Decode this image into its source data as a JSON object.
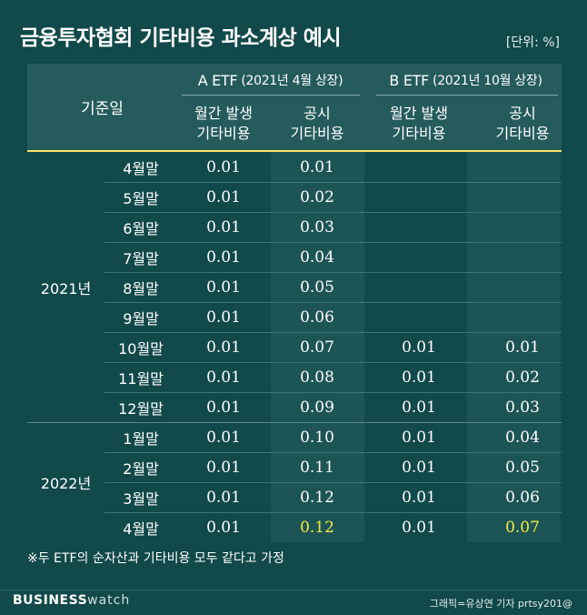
{
  "title": "금융투자협회 기타비용 과소계상 예시",
  "unit": "[단위: %]",
  "chart_data": {
    "type": "table",
    "header": {
      "base_date": "기준일",
      "group_a": {
        "name": "A ETF",
        "note": "(2021년 4월 상장)"
      },
      "group_b": {
        "name": "B ETF",
        "note": "(2021년 10월 상장)"
      },
      "sub_cols": [
        [
          "월간 발생",
          "기타비용"
        ],
        [
          "공시",
          "기타비용"
        ],
        [
          "월간 발생",
          "기타비용"
        ],
        [
          "공시",
          "기타비용"
        ]
      ]
    },
    "years": [
      {
        "label": "2021년",
        "row_count": 9
      },
      {
        "label": "2022년",
        "row_count": 4
      }
    ],
    "rows": [
      {
        "month": "4월말",
        "a_monthly": "0.01",
        "a_disclosed": "0.01",
        "b_monthly": "",
        "b_disclosed": ""
      },
      {
        "month": "5월말",
        "a_monthly": "0.01",
        "a_disclosed": "0.02",
        "b_monthly": "",
        "b_disclosed": ""
      },
      {
        "month": "6월말",
        "a_monthly": "0.01",
        "a_disclosed": "0.03",
        "b_monthly": "",
        "b_disclosed": ""
      },
      {
        "month": "7월말",
        "a_monthly": "0.01",
        "a_disclosed": "0.04",
        "b_monthly": "",
        "b_disclosed": ""
      },
      {
        "month": "8월말",
        "a_monthly": "0.01",
        "a_disclosed": "0.05",
        "b_monthly": "",
        "b_disclosed": ""
      },
      {
        "month": "9월말",
        "a_monthly": "0.01",
        "a_disclosed": "0.06",
        "b_monthly": "",
        "b_disclosed": ""
      },
      {
        "month": "10월말",
        "a_monthly": "0.01",
        "a_disclosed": "0.07",
        "b_monthly": "0.01",
        "b_disclosed": "0.01"
      },
      {
        "month": "11월말",
        "a_monthly": "0.01",
        "a_disclosed": "0.08",
        "b_monthly": "0.01",
        "b_disclosed": "0.02"
      },
      {
        "month": "12월말",
        "a_monthly": "0.01",
        "a_disclosed": "0.09",
        "b_monthly": "0.01",
        "b_disclosed": "0.03"
      },
      {
        "month": "1월말",
        "a_monthly": "0.01",
        "a_disclosed": "0.10",
        "b_monthly": "0.01",
        "b_disclosed": "0.04"
      },
      {
        "month": "2월말",
        "a_monthly": "0.01",
        "a_disclosed": "0.11",
        "b_monthly": "0.01",
        "b_disclosed": "0.05"
      },
      {
        "month": "3월말",
        "a_monthly": "0.01",
        "a_disclosed": "0.12",
        "b_monthly": "0.01",
        "b_disclosed": "0.06"
      },
      {
        "month": "4월말",
        "a_monthly": "0.01",
        "a_disclosed": "0.12",
        "b_monthly": "0.01",
        "b_disclosed": "0.07"
      }
    ],
    "highlight": [
      {
        "row": 12,
        "col": "a_disclosed"
      },
      {
        "row": 12,
        "col": "b_disclosed"
      }
    ],
    "highlight_color": "#f4ea45"
  },
  "note": "※두 ETF의 순자산과 기타비용 모두 같다고 가정",
  "footer": {
    "brand_bold": "BUSINESS",
    "brand_light": "watch",
    "credit": "그래픽=유상연 기자 prtsy201@"
  },
  "colors": {
    "background": "#12494a",
    "header_band": "#255b5c",
    "header_underline": "#f3e36a",
    "shaded_column": "#1d5455"
  }
}
